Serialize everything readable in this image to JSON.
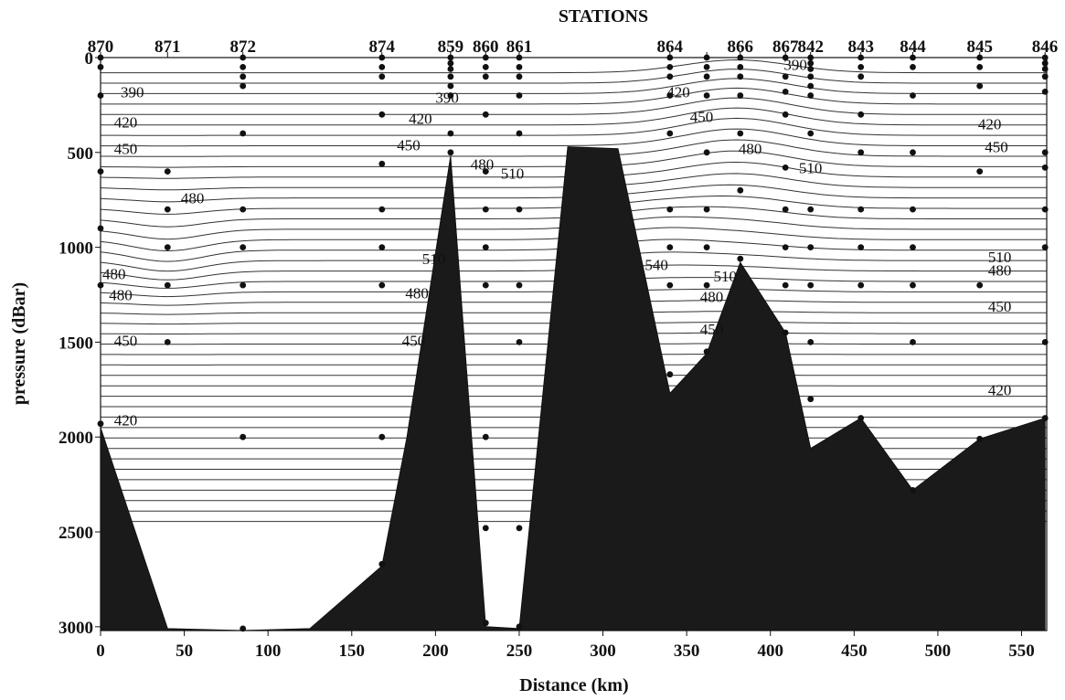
{
  "chart_data": {
    "type": "contour",
    "title": "STATIONS",
    "xlabel": "Distance (km)",
    "ylabel": "pressure (dBar)",
    "xlim": [
      0,
      565
    ],
    "ylim": [
      3020,
      0
    ],
    "x_ticks": [
      0,
      50,
      100,
      150,
      200,
      250,
      300,
      350,
      400,
      450,
      500,
      550
    ],
    "y_ticks": [
      0,
      500,
      1000,
      1500,
      2000,
      2500,
      3000
    ],
    "stations": [
      {
        "name": "870",
        "x": 0
      },
      {
        "name": "871",
        "x": 40
      },
      {
        "name": "872",
        "x": 85
      },
      {
        "name": "874",
        "x": 168
      },
      {
        "name": "859",
        "x": 209
      },
      {
        "name": "860",
        "x": 230
      },
      {
        "name": "861",
        "x": 250
      },
      {
        "name": "864",
        "x": 340
      },
      {
        "name": "",
        "x": 362
      },
      {
        "name": "866",
        "x": 382
      },
      {
        "name": "867",
        "x": 409
      },
      {
        "name": "842",
        "x": 424
      },
      {
        "name": "843",
        "x": 454
      },
      {
        "name": "844",
        "x": 485
      },
      {
        "name": "845",
        "x": 525
      },
      {
        "name": "846",
        "x": 564
      }
    ],
    "bottom_profile": [
      [
        0,
        1950
      ],
      [
        40,
        3010
      ],
      [
        85,
        3020
      ],
      [
        125,
        3010
      ],
      [
        168,
        2680
      ],
      [
        183,
        2000
      ],
      [
        209,
        520
      ],
      [
        230,
        3000
      ],
      [
        250,
        3010
      ],
      [
        279,
        470
      ],
      [
        309,
        480
      ],
      [
        340,
        1770
      ],
      [
        362,
        1560
      ],
      [
        382,
        1080
      ],
      [
        409,
        1450
      ],
      [
        424,
        2060
      ],
      [
        454,
        1900
      ],
      [
        485,
        2280
      ],
      [
        525,
        2010
      ],
      [
        564,
        1900
      ]
    ],
    "contour_levels": [
      390,
      420,
      450,
      480,
      510,
      540
    ],
    "contour_labels": [
      {
        "text": "390",
        "x": 12,
        "y": 180
      },
      {
        "text": "390",
        "x": 200,
        "y": 210
      },
      {
        "text": "390",
        "x": 408,
        "y": 35
      },
      {
        "text": "420",
        "x": 8,
        "y": 340
      },
      {
        "text": "420",
        "x": 184,
        "y": 320
      },
      {
        "text": "420",
        "x": 338,
        "y": 180
      },
      {
        "text": "420",
        "x": 524,
        "y": 350
      },
      {
        "text": "450",
        "x": 8,
        "y": 480
      },
      {
        "text": "450",
        "x": 177,
        "y": 460
      },
      {
        "text": "450",
        "x": 352,
        "y": 310
      },
      {
        "text": "450",
        "x": 528,
        "y": 470
      },
      {
        "text": "480",
        "x": 48,
        "y": 740
      },
      {
        "text": "480",
        "x": 221,
        "y": 560
      },
      {
        "text": "480",
        "x": 381,
        "y": 480
      },
      {
        "text": "480",
        "x": -3,
        "y": 1140
      },
      {
        "text": "480",
        "x": 5,
        "y": 1250
      },
      {
        "text": "480",
        "x": 182,
        "y": 1240
      },
      {
        "text": "480",
        "x": 358,
        "y": 1260
      },
      {
        "text": "480",
        "x": 530,
        "y": 1120
      },
      {
        "text": "510",
        "x": 239,
        "y": 610
      },
      {
        "text": "510",
        "x": 417,
        "y": 580
      },
      {
        "text": "510",
        "x": 192,
        "y": 1060
      },
      {
        "text": "510",
        "x": 366,
        "y": 1150
      },
      {
        "text": "510",
        "x": 530,
        "y": 1050
      },
      {
        "text": "540",
        "x": 325,
        "y": 1090
      },
      {
        "text": "450",
        "x": 8,
        "y": 1490
      },
      {
        "text": "450",
        "x": 180,
        "y": 1490
      },
      {
        "text": "450",
        "x": 358,
        "y": 1430
      },
      {
        "text": "450",
        "x": 530,
        "y": 1310
      },
      {
        "text": "420",
        "x": 8,
        "y": 1910
      },
      {
        "text": "420",
        "x": 530,
        "y": 1750
      }
    ],
    "samples": [
      [
        0,
        0
      ],
      [
        0,
        50
      ],
      [
        0,
        200
      ],
      [
        0,
        600
      ],
      [
        0,
        900
      ],
      [
        0,
        1200
      ],
      [
        0,
        1930
      ],
      [
        40,
        600
      ],
      [
        40,
        800
      ],
      [
        40,
        1000
      ],
      [
        40,
        1200
      ],
      [
        40,
        1500
      ],
      [
        85,
        0
      ],
      [
        85,
        50
      ],
      [
        85,
        100
      ],
      [
        85,
        150
      ],
      [
        85,
        400
      ],
      [
        85,
        800
      ],
      [
        85,
        1000
      ],
      [
        85,
        1200
      ],
      [
        85,
        2000
      ],
      [
        85,
        3010
      ],
      [
        168,
        0
      ],
      [
        168,
        50
      ],
      [
        168,
        100
      ],
      [
        168,
        300
      ],
      [
        168,
        560
      ],
      [
        168,
        800
      ],
      [
        168,
        1000
      ],
      [
        168,
        1200
      ],
      [
        168,
        2000
      ],
      [
        168,
        2670
      ],
      [
        209,
        0
      ],
      [
        209,
        30
      ],
      [
        209,
        60
      ],
      [
        209,
        100
      ],
      [
        209,
        150
      ],
      [
        209,
        200
      ],
      [
        209,
        400
      ],
      [
        209,
        500
      ],
      [
        230,
        0
      ],
      [
        230,
        50
      ],
      [
        230,
        100
      ],
      [
        230,
        300
      ],
      [
        230,
        600
      ],
      [
        230,
        800
      ],
      [
        230,
        1000
      ],
      [
        230,
        1200
      ],
      [
        230,
        2000
      ],
      [
        230,
        2480
      ],
      [
        230,
        2980
      ],
      [
        250,
        0
      ],
      [
        250,
        50
      ],
      [
        250,
        100
      ],
      [
        250,
        200
      ],
      [
        250,
        400
      ],
      [
        250,
        800
      ],
      [
        250,
        1200
      ],
      [
        250,
        1500
      ],
      [
        250,
        2480
      ],
      [
        250,
        3000
      ],
      [
        340,
        0
      ],
      [
        340,
        50
      ],
      [
        340,
        100
      ],
      [
        340,
        200
      ],
      [
        340,
        400
      ],
      [
        340,
        800
      ],
      [
        340,
        1000
      ],
      [
        340,
        1200
      ],
      [
        340,
        1670
      ],
      [
        362,
        0
      ],
      [
        362,
        50
      ],
      [
        362,
        100
      ],
      [
        362,
        200
      ],
      [
        362,
        500
      ],
      [
        362,
        800
      ],
      [
        362,
        1000
      ],
      [
        362,
        1200
      ],
      [
        362,
        1550
      ],
      [
        382,
        0
      ],
      [
        382,
        50
      ],
      [
        382,
        100
      ],
      [
        382,
        200
      ],
      [
        382,
        400
      ],
      [
        382,
        700
      ],
      [
        382,
        1060
      ],
      [
        409,
        0
      ],
      [
        409,
        100
      ],
      [
        409,
        180
      ],
      [
        409,
        300
      ],
      [
        409,
        580
      ],
      [
        409,
        800
      ],
      [
        409,
        1000
      ],
      [
        409,
        1200
      ],
      [
        409,
        1450
      ],
      [
        424,
        0
      ],
      [
        424,
        30
      ],
      [
        424,
        60
      ],
      [
        424,
        100
      ],
      [
        424,
        150
      ],
      [
        424,
        200
      ],
      [
        424,
        400
      ],
      [
        424,
        800
      ],
      [
        424,
        1000
      ],
      [
        424,
        1200
      ],
      [
        424,
        1500
      ],
      [
        424,
        1800
      ],
      [
        454,
        0
      ],
      [
        454,
        50
      ],
      [
        454,
        100
      ],
      [
        454,
        300
      ],
      [
        454,
        500
      ],
      [
        454,
        800
      ],
      [
        454,
        1000
      ],
      [
        454,
        1200
      ],
      [
        454,
        1900
      ],
      [
        485,
        0
      ],
      [
        485,
        50
      ],
      [
        485,
        200
      ],
      [
        485,
        500
      ],
      [
        485,
        800
      ],
      [
        485,
        1000
      ],
      [
        485,
        1200
      ],
      [
        485,
        1500
      ],
      [
        485,
        2280
      ],
      [
        525,
        0
      ],
      [
        525,
        50
      ],
      [
        525,
        150
      ],
      [
        525,
        600
      ],
      [
        525,
        1200
      ],
      [
        525,
        2010
      ],
      [
        564,
        0
      ],
      [
        564,
        30
      ],
      [
        564,
        60
      ],
      [
        564,
        100
      ],
      [
        564,
        180
      ],
      [
        564,
        500
      ],
      [
        564,
        580
      ],
      [
        564,
        800
      ],
      [
        564,
        1000
      ],
      [
        564,
        1500
      ],
      [
        564,
        1900
      ]
    ]
  }
}
